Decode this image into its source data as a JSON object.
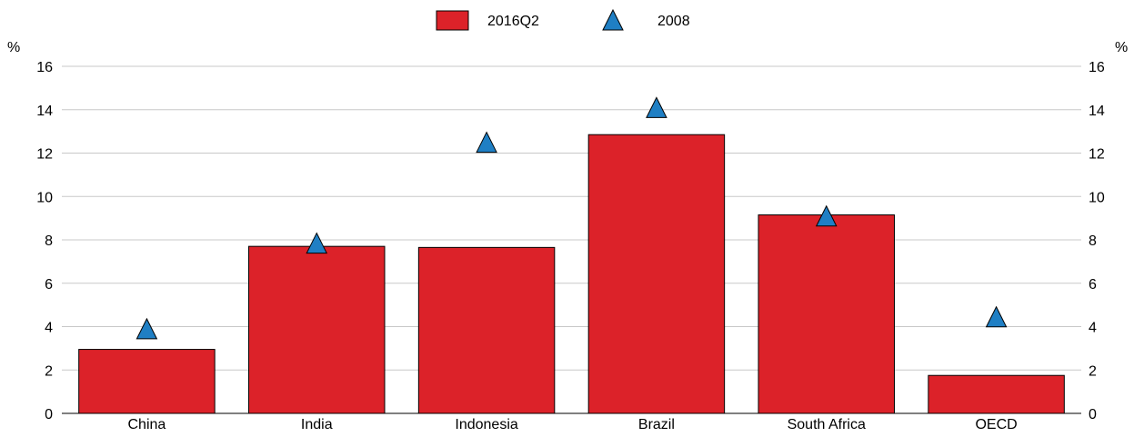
{
  "chart_data": {
    "type": "bar",
    "title": "",
    "xlabel": "",
    "ylabel": "%",
    "ylabel_right": "%",
    "ylim": [
      0,
      16
    ],
    "yticks": [
      "0",
      "2",
      "4",
      "6",
      "8",
      "10",
      "12",
      "14",
      "16"
    ],
    "grid": true,
    "legend_position": "top-center",
    "categories": [
      "China",
      "India",
      "Indonesia",
      "Brazil",
      "South Africa",
      "OECD"
    ],
    "series": [
      {
        "name": "2016Q2",
        "kind": "bar",
        "color": "#dc2229",
        "values": [
          2.95,
          7.7,
          7.65,
          12.85,
          9.15,
          1.75
        ]
      },
      {
        "name": "2008",
        "kind": "triangle-marker",
        "color": "#1f7fc4",
        "values": [
          3.9,
          7.85,
          12.5,
          14.1,
          9.1,
          4.45
        ]
      }
    ]
  }
}
